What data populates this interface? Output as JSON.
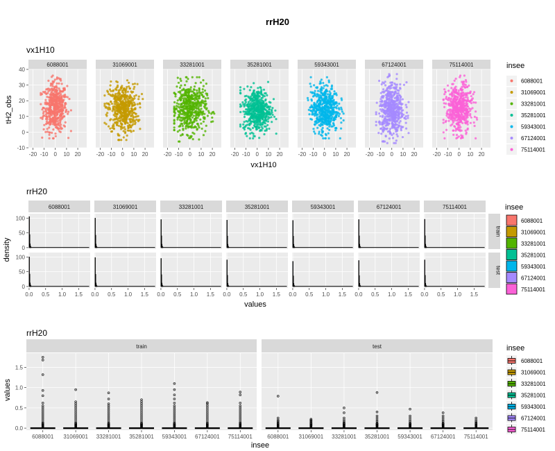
{
  "figure": {
    "title": "rrH20"
  },
  "colors": {
    "groups": [
      "#F8766D",
      "#C49A00",
      "#53B400",
      "#00C094",
      "#00B6EB",
      "#A58AFF",
      "#FB61D7"
    ],
    "panel_bg": "#EBEBEB",
    "strip_bg": "#D9D9D9",
    "grid": "#FFFFFF",
    "text": "#4D4D4D"
  },
  "chart_data": [
    {
      "type": "scatter",
      "title": "vx1H10",
      "xlabel": "vx1H10",
      "ylabel": "tH2_obs",
      "facets": [
        "6088001",
        "31069001",
        "33281001",
        "35281001",
        "59343001",
        "67124001",
        "75114001"
      ],
      "xlim": [
        -24,
        28
      ],
      "ylim": [
        -10,
        40
      ],
      "xticks": [
        "-20",
        "-10",
        "0",
        "10",
        "20"
      ],
      "xtick_values": [
        -20,
        -10,
        0,
        10,
        20
      ],
      "yticks": [
        "-10",
        "0",
        "10",
        "20",
        "30",
        "40"
      ],
      "ytick_values": [
        -10,
        0,
        10,
        20,
        30,
        40
      ],
      "clusters": [
        {
          "x_range": [
            -13,
            14
          ],
          "y_range": [
            -4,
            36
          ],
          "x_center": 0,
          "y_center": 16
        },
        {
          "x_range": [
            -16,
            18
          ],
          "y_range": [
            -5,
            35
          ],
          "x_center": 0,
          "y_center": 15
        },
        {
          "x_range": [
            -14,
            24
          ],
          "y_range": [
            -6,
            35
          ],
          "x_center": 0,
          "y_center": 15
        },
        {
          "x_range": [
            -15,
            17
          ],
          "y_range": [
            -4,
            32
          ],
          "x_center": 0,
          "y_center": 14
        },
        {
          "x_range": [
            -15,
            17
          ],
          "y_range": [
            -4,
            35
          ],
          "x_center": 0,
          "y_center": 15
        },
        {
          "x_range": [
            -14,
            15
          ],
          "y_range": [
            -7,
            37
          ],
          "x_center": 0,
          "y_center": 14
        },
        {
          "x_range": [
            -14,
            16
          ],
          "y_range": [
            -4,
            36
          ],
          "x_center": 0,
          "y_center": 15
        }
      ],
      "legend": {
        "title": "insee",
        "position": "right",
        "entries": [
          "6088001",
          "31069001",
          "33281001",
          "35281001",
          "59343001",
          "67124001",
          "75114001"
        ]
      },
      "grid": true
    },
    {
      "type": "bar",
      "title": "rrH20",
      "xlabel": "values",
      "ylabel": "density",
      "facets_cols": [
        "6088001",
        "31069001",
        "33281001",
        "35281001",
        "59343001",
        "67124001",
        "75114001"
      ],
      "facets_rows": [
        "train",
        "test"
      ],
      "xlim": [
        -0.02,
        1.85
      ],
      "ylim": [
        -5,
        115
      ],
      "xticks": [
        "0.0",
        "0.5",
        "1.0",
        "1.5"
      ],
      "xtick_values": [
        0,
        0.5,
        1.0,
        1.5
      ],
      "yticks": [
        "0",
        "50",
        "100"
      ],
      "ytick_values": [
        0,
        50,
        100
      ],
      "peak_density": {
        "train": [
          105,
          100,
          95,
          93,
          92,
          95,
          96
        ],
        "test": [
          100,
          98,
          95,
          90,
          85,
          88,
          90
        ]
      },
      "legend": {
        "title": "insee",
        "position": "right",
        "entries": [
          "6088001",
          "31069001",
          "33281001",
          "35281001",
          "59343001",
          "67124001",
          "75114001"
        ]
      },
      "grid": true
    },
    {
      "type": "box",
      "title": "rrH20",
      "xlabel": "insee",
      "ylabel": "values",
      "facets": [
        "train",
        "test"
      ],
      "categories": [
        "6088001",
        "31069001",
        "33281001",
        "35281001",
        "59343001",
        "67124001",
        "75114001"
      ],
      "ylim": [
        -0.05,
        1.85
      ],
      "yticks": [
        "0.0",
        "0.5",
        "1.0",
        "1.5"
      ],
      "ytick_values": [
        0,
        0.5,
        1.0,
        1.5
      ],
      "max_outlier": {
        "train": [
          1.75,
          0.95,
          0.87,
          0.7,
          1.1,
          0.63,
          0.89
        ],
        "test": [
          0.79,
          0.22,
          0.5,
          0.88,
          0.47,
          0.38,
          0.25
        ]
      },
      "outliers_sample": {
        "train": [
          [
            1.75,
            1.68,
            1.32,
            0.93,
            0.8,
            0.62,
            0.55,
            0.5,
            0.45,
            0.4,
            0.35,
            0.3,
            0.25,
            0.2,
            0.15,
            0.1,
            0.06
          ],
          [
            0.95,
            0.65,
            0.6,
            0.55,
            0.5,
            0.45,
            0.4,
            0.35,
            0.3,
            0.25,
            0.2,
            0.15,
            0.1,
            0.06
          ],
          [
            0.87,
            0.72,
            0.6,
            0.55,
            0.5,
            0.45,
            0.4,
            0.35,
            0.3,
            0.25,
            0.2,
            0.15,
            0.1,
            0.06
          ],
          [
            0.7,
            0.65,
            0.6,
            0.55,
            0.5,
            0.45,
            0.4,
            0.35,
            0.3,
            0.25,
            0.2,
            0.15,
            0.1,
            0.06
          ],
          [
            1.1,
            0.95,
            0.82,
            0.72,
            0.62,
            0.55,
            0.5,
            0.45,
            0.4,
            0.35,
            0.3,
            0.25,
            0.2,
            0.15,
            0.1,
            0.06
          ],
          [
            0.63,
            0.6,
            0.55,
            0.5,
            0.45,
            0.4,
            0.35,
            0.3,
            0.25,
            0.2,
            0.15,
            0.1,
            0.06
          ],
          [
            0.89,
            0.82,
            0.62,
            0.55,
            0.5,
            0.45,
            0.4,
            0.35,
            0.3,
            0.25,
            0.2,
            0.15,
            0.1,
            0.06
          ]
        ],
        "test": [
          [
            0.79,
            0.25,
            0.2,
            0.17,
            0.14,
            0.11,
            0.08,
            0.06
          ],
          [
            0.22,
            0.2,
            0.18,
            0.16,
            0.14,
            0.12,
            0.1,
            0.08,
            0.06
          ],
          [
            0.5,
            0.38,
            0.25,
            0.2,
            0.16,
            0.13,
            0.1,
            0.07
          ],
          [
            0.88,
            0.4,
            0.3,
            0.25,
            0.2,
            0.16,
            0.12,
            0.09,
            0.06
          ],
          [
            0.47,
            0.3,
            0.25,
            0.2,
            0.16,
            0.12,
            0.09,
            0.06
          ],
          [
            0.38,
            0.3,
            0.25,
            0.2,
            0.16,
            0.12,
            0.09,
            0.06
          ],
          [
            0.25,
            0.2,
            0.16,
            0.13,
            0.1,
            0.08,
            0.06
          ]
        ]
      },
      "legend": {
        "title": "insee",
        "position": "right",
        "entries": [
          "6088001",
          "31069001",
          "33281001",
          "35281001",
          "59343001",
          "67124001",
          "75114001"
        ]
      },
      "grid": true
    }
  ]
}
